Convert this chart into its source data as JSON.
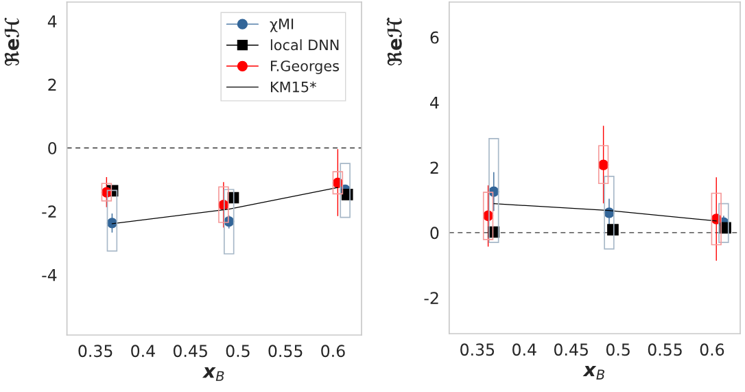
{
  "chart_data": [
    {
      "type": "scatter",
      "xlabel": "x$_{B}$",
      "ylabel": "ℜeℋ",
      "xlim": [
        0.32,
        0.63
      ],
      "ylim": [
        -5.9,
        4.6
      ],
      "xticks": [
        0.35,
        0.4,
        0.45,
        0.5,
        0.55,
        0.6
      ],
      "yticks": [
        -4,
        -2,
        0,
        2,
        4
      ],
      "grid": false,
      "legend": "top right",
      "ref_lines": [
        {
          "axis": "y",
          "value": 0,
          "color": "#333333",
          "line_style": "dashed"
        }
      ],
      "series": [
        {
          "type": "bar",
          "color": "#a7b8c8",
          "x": [
            0.3675,
            0.4905,
            0.6128
          ],
          "base": [
            -3.25,
            -3.34,
            -2.19
          ],
          "values": [
            1.91,
            2.03,
            1.7
          ]
        },
        {
          "type": "bar",
          "color": "#f59a9a",
          "x": [
            0.3617,
            0.4848,
            0.605
          ],
          "base": [
            -1.67,
            -2.35,
            -1.45
          ],
          "values": [
            0.55,
            1.12,
            0.7
          ]
        },
        {
          "name": "χMI",
          "type": "scatter",
          "marker": "circle",
          "color": "#336699",
          "x": [
            0.3675,
            0.4905,
            0.6128
          ],
          "values": [
            -2.37,
            -2.32,
            -1.32
          ],
          "errors": [
            [
              -2.67,
              -2.07
            ],
            [
              -2.54,
              -2.13
            ],
            null
          ]
        },
        {
          "name": "local DNN",
          "type": "scatter",
          "marker": "square",
          "color": "#000000",
          "x": [
            0.368,
            0.495,
            0.615
          ],
          "values": [
            -1.35,
            -1.57,
            -1.47
          ]
        },
        {
          "name": "F.Georges",
          "type": "scatter",
          "marker": "circle",
          "color": "#ff0000",
          "x": [
            0.3617,
            0.4848,
            0.605
          ],
          "values": [
            -1.4,
            -1.8,
            -1.1
          ],
          "errors": [
            [
              -1.87,
              -0.92
            ],
            [
              -2.51,
              -1.08
            ],
            [
              -2.15,
              -0.04
            ]
          ]
        },
        {
          "name": "KM15*",
          "type": "line",
          "marker": "none",
          "color": "#000000",
          "x": [
            0.3675,
            0.4905,
            0.605
          ],
          "values": [
            -2.39,
            -1.93,
            -1.25
          ]
        }
      ]
    },
    {
      "type": "scatter",
      "xlabel": "x$_{B}$",
      "ylabel": "ℜeℋ̃",
      "xlim": [
        0.32,
        0.63
      ],
      "ylim": [
        -3.1,
        7.08
      ],
      "xticks": [
        0.35,
        0.4,
        0.45,
        0.5,
        0.55,
        0.6
      ],
      "yticks": [
        -2,
        0,
        2,
        4,
        6
      ],
      "grid": false,
      "legend": false,
      "ref_lines": [
        {
          "axis": "y",
          "value": 0,
          "color": "#333333",
          "line_style": "dashed"
        }
      ],
      "series": [
        {
          "type": "bar",
          "color": "#a7b8c8",
          "x": [
            0.3675,
            0.4904,
            0.6124
          ],
          "base": [
            -0.3,
            -0.5,
            -0.3
          ],
          "values": [
            3.19,
            2.23,
            1.19
          ]
        },
        {
          "type": "bar",
          "color": "#f59a9a",
          "x": [
            0.3615,
            0.4843,
            0.6046
          ],
          "base": [
            -0.21,
            1.51,
            -0.37
          ],
          "values": [
            1.45,
            1.16,
            1.58
          ]
        },
        {
          "type": "scatter",
          "marker": "circle",
          "color": "#336699",
          "x": [
            0.3675,
            0.4904,
            0.6124
          ],
          "values": [
            1.26,
            0.61,
            0.31
          ],
          "errors": [
            [
              0.67,
              1.86
            ],
            [
              0.14,
              1.04
            ],
            [
              0.31,
              0.52
            ]
          ]
        },
        {
          "type": "scatter",
          "marker": "square",
          "color": "#000000",
          "x": [
            0.3675,
            0.4944,
            0.6143
          ],
          "values": [
            0.02,
            0.09,
            0.15
          ]
        },
        {
          "type": "scatter",
          "marker": "circle",
          "color": "#ff0000",
          "x": [
            0.3615,
            0.4843,
            0.6046
          ],
          "values": [
            0.52,
            2.08,
            0.42
          ],
          "errors": [
            [
              -0.43,
              1.45
            ],
            [
              0.9,
              3.28
            ],
            [
              -0.86,
              1.7
            ]
          ]
        },
        {
          "type": "line",
          "marker": "none",
          "color": "#000000",
          "x": [
            0.3675,
            0.4904,
            0.6046
          ],
          "values": [
            0.89,
            0.68,
            0.36
          ]
        }
      ]
    }
  ]
}
